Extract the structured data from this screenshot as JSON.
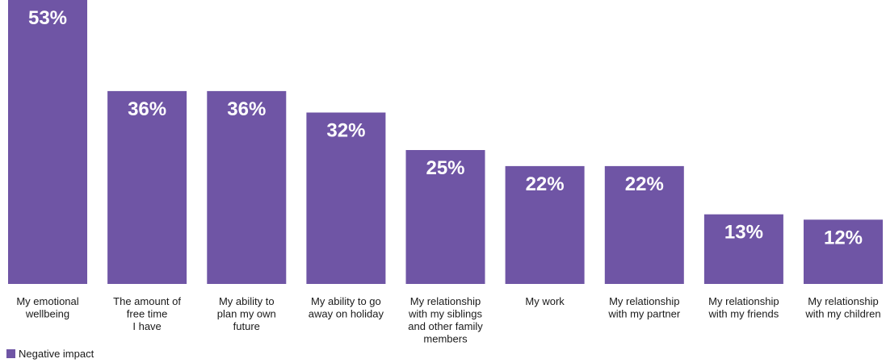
{
  "chart_data": {
    "type": "bar",
    "categories": [
      [
        "My emotional",
        "wellbeing"
      ],
      [
        "The amount of",
        "free time",
        "I have"
      ],
      [
        "My ability to",
        "plan my own",
        "future"
      ],
      [
        "My ability to go",
        "away on holiday"
      ],
      [
        "My relationship",
        "with my siblings",
        "and other family",
        "members"
      ],
      [
        "My work"
      ],
      [
        "My relationship",
        "with my partner"
      ],
      [
        "My relationship",
        "with my friends"
      ],
      [
        "My relationship",
        "with my children"
      ]
    ],
    "series": [
      {
        "name": "Negative impact",
        "values": [
          53,
          36,
          36,
          32,
          25,
          22,
          22,
          13,
          12
        ],
        "labels": [
          "53%",
          "36%",
          "36%",
          "32%",
          "25%",
          "22%",
          "22%",
          "13%",
          "12%"
        ],
        "color": "#6f55a5"
      }
    ],
    "ylim": [
      0,
      53
    ],
    "grid": false,
    "legend": "bottom-left"
  }
}
